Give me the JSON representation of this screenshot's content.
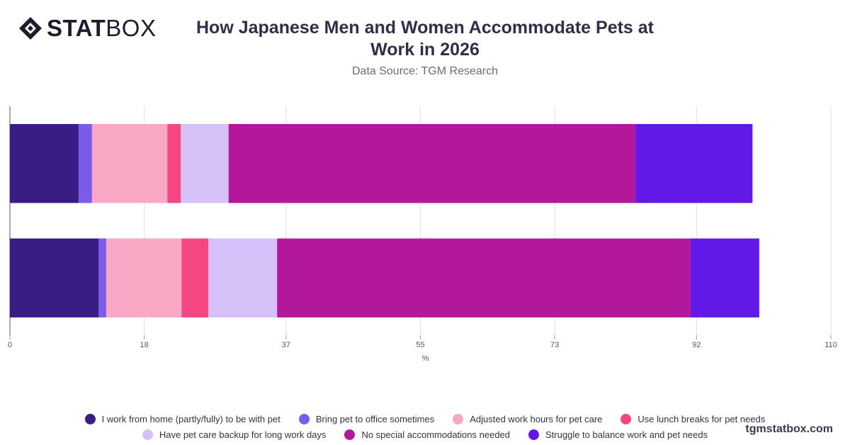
{
  "brand": {
    "name_bold": "STAT",
    "name_light": "BOX"
  },
  "header": {
    "title": "How Japanese Men and Women Accommodate Pets at Work in 2026",
    "subtitle": "Data Source: TGM Research"
  },
  "footer": {
    "url": "tgmstatbox.com"
  },
  "chart_data": {
    "type": "bar",
    "orientation": "horizontal",
    "stacked": true,
    "categories": [
      "",
      ""
    ],
    "xlabel": "%",
    "xlim": [
      0,
      110
    ],
    "xticks": [
      "0",
      "18",
      "37",
      "55",
      "73",
      "92",
      "110"
    ],
    "grid": true,
    "legend_position": "bottom",
    "series": [
      {
        "name": "I work from home (partly/fully) to be with pet",
        "color": "#3a1c85",
        "values": [
          9.2,
          11.9
        ]
      },
      {
        "name": "Bring pet to office sometimes",
        "color": "#7b5ce8",
        "values": [
          1.8,
          1.0
        ]
      },
      {
        "name": "Adjusted work hours for pet care",
        "color": "#f9a7c4",
        "values": [
          10.1,
          10.1
        ]
      },
      {
        "name": "Use lunch breaks for pet needs",
        "color": "#f54583",
        "values": [
          1.8,
          3.6
        ]
      },
      {
        "name": "Have pet care backup for long work days",
        "color": "#d6c0f8",
        "values": [
          6.4,
          9.2
        ]
      },
      {
        "name": "No special accommodations needed",
        "color": "#b3189c",
        "values": [
          54.5,
          55.4
        ]
      },
      {
        "name": "Struggle to balance work and pet needs",
        "color": "#6219e8",
        "values": [
          15.7,
          9.2
        ]
      }
    ]
  },
  "legend": {
    "rows": [
      [
        0,
        1,
        2,
        3
      ],
      [
        4,
        5,
        6
      ]
    ]
  }
}
